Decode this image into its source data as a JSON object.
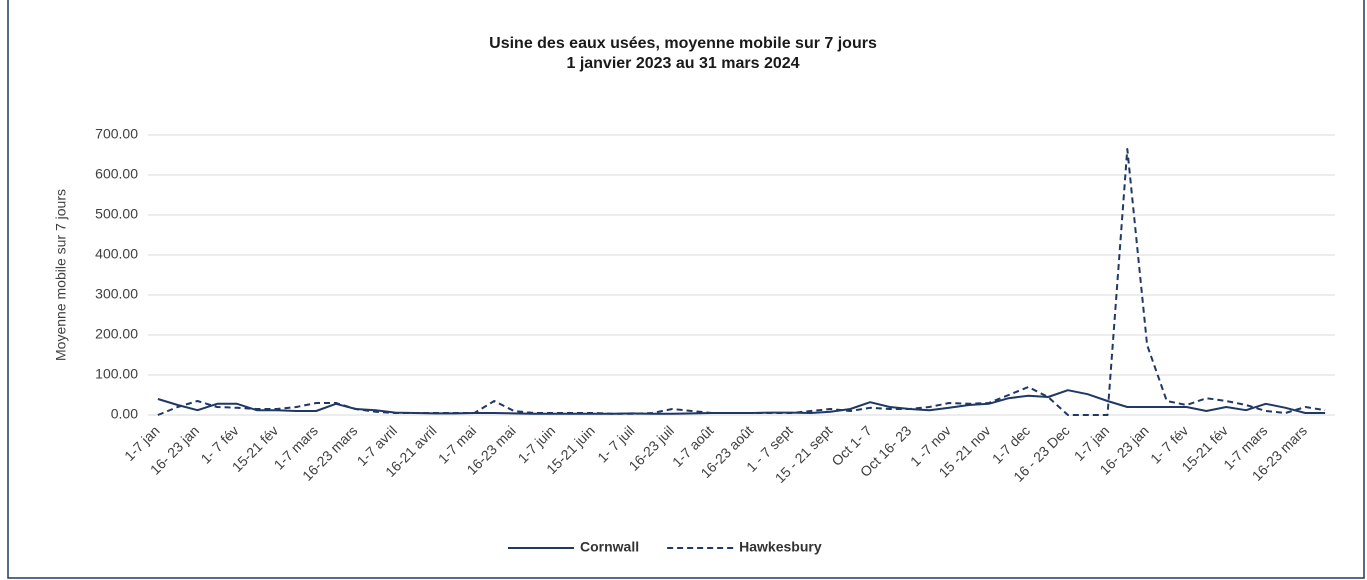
{
  "chart_data": {
    "type": "line",
    "title": "Usine des eaux usées, moyenne mobile sur 7 jours",
    "subtitle": "1 janvier 2023 au 31 mars 2024",
    "y_label": "Moyenne mobile sur 7 jours",
    "categories": [
      "1-7 jan",
      null,
      "16- 23 jan",
      null,
      "1- 7 fév",
      null,
      "15-21 fév",
      null,
      "1-7 mars",
      null,
      "16-23 mars",
      null,
      "1-7 avril",
      null,
      "16-21 avril",
      null,
      "1-7 mai",
      null,
      "16-23 mai",
      null,
      "1-7 juin",
      null,
      "15-21 juin",
      null,
      "1- 7 juil",
      null,
      "16-23 juil",
      null,
      "1-7 août",
      null,
      "16-23 août",
      null,
      "1 - 7 sept",
      null,
      "15 - 21 sept",
      null,
      "Oct 1- 7",
      null,
      "Oct 16- 23",
      null,
      "1 -7 nov",
      null,
      "15 -21 nov",
      null,
      "1-7 dec",
      null,
      "16 - 23 Dec",
      null,
      "1-7 jan",
      null,
      "16- 23 jan",
      null,
      "1- 7 fév",
      null,
      "15-21 fév",
      null,
      "1-7 mars",
      null,
      "16-23 mars",
      null
    ],
    "series": [
      {
        "name": "Cornwall",
        "color": "#1f3864",
        "dash": false,
        "values": [
          40,
          25,
          12,
          28,
          28,
          12,
          12,
          10,
          10,
          28,
          15,
          12,
          6,
          5,
          4,
          4,
          5,
          5,
          4,
          3,
          3,
          3,
          3,
          3,
          4,
          3,
          3,
          4,
          5,
          5,
          5,
          6,
          6,
          5,
          8,
          15,
          32,
          20,
          15,
          12,
          18,
          25,
          28,
          42,
          48,
          45,
          62,
          52,
          35,
          20,
          20,
          20,
          20,
          10,
          20,
          12,
          28,
          18,
          5,
          5
        ]
      },
      {
        "name": "Hawkesbury",
        "color": "#1f3864",
        "dash": true,
        "values": [
          0,
          20,
          35,
          20,
          18,
          15,
          15,
          20,
          30,
          30,
          15,
          8,
          5,
          5,
          5,
          5,
          5,
          35,
          10,
          5,
          5,
          5,
          5,
          3,
          3,
          5,
          15,
          10,
          5,
          5,
          5,
          5,
          5,
          10,
          15,
          10,
          18,
          15,
          15,
          20,
          30,
          28,
          30,
          50,
          70,
          45,
          0,
          0,
          0,
          665,
          175,
          35,
          25,
          42,
          35,
          25,
          10,
          5,
          20,
          12
        ]
      }
    ],
    "ylim": [
      0,
      700
    ],
    "yticks": [
      {
        "value": 0,
        "label": "0.00"
      },
      {
        "value": 100,
        "label": "100.00"
      },
      {
        "value": 200,
        "label": "200.00"
      },
      {
        "value": 300,
        "label": "300.00"
      },
      {
        "value": 400,
        "label": "400.00"
      },
      {
        "value": 500,
        "label": "500.00"
      },
      {
        "value": 600,
        "label": "600.00"
      },
      {
        "value": 700,
        "label": "700.00"
      }
    ],
    "grid": true,
    "legend": "bottom"
  }
}
